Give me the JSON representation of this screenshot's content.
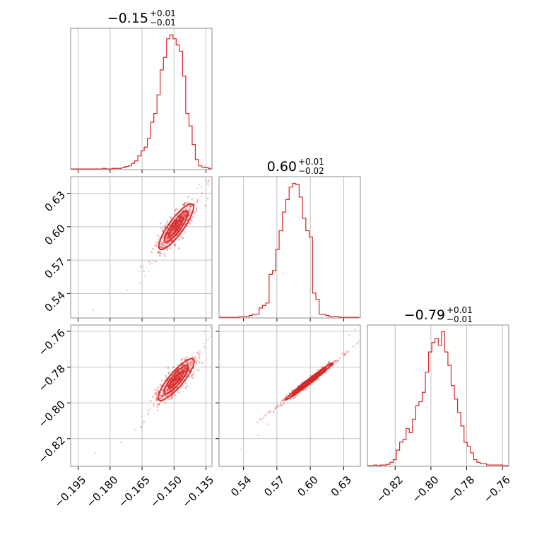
{
  "chart_data": [
    {
      "type": "histogram",
      "panel": "hist-param-1",
      "title": "−0.15",
      "title_upper": "+0.01",
      "title_lower": "−0.01",
      "xlim": [
        -0.1985,
        -0.1322
      ],
      "xticks": [
        -0.195,
        -0.18,
        -0.165,
        -0.15,
        -0.135
      ],
      "xtick_labels": [
        "−0.195",
        "−0.180",
        "−0.165",
        "−0.150",
        "−0.135"
      ],
      "show_xtick_labels": false,
      "color": "#d62728",
      "bins_start": -0.1985,
      "bin_width": 0.0015,
      "counts": [
        0.5,
        0.5,
        0.5,
        0.5,
        0.5,
        0.5,
        0.5,
        0.5,
        0.5,
        0.5,
        1,
        0.5,
        0.5,
        1,
        1,
        1,
        1.5,
        2.5,
        3,
        5,
        7,
        11,
        15,
        18,
        25,
        38,
        45,
        60,
        80,
        90,
        105,
        108,
        105,
        100,
        95,
        75,
        45,
        35,
        20,
        8,
        3,
        2,
        1.5,
        1
      ]
    },
    {
      "type": "histogram",
      "panel": "hist-param-2",
      "title": "0.60",
      "title_upper": "+0.01",
      "title_lower": "−0.02",
      "xlim": [
        0.518,
        0.645
      ],
      "xticks": [
        0.54,
        0.57,
        0.6,
        0.63
      ],
      "xtick_labels": [
        "0.54",
        "0.57",
        "0.60",
        "0.63"
      ],
      "show_xtick_labels": false,
      "color": "#d62728",
      "bins_start": 0.518,
      "bin_width": 0.003,
      "counts": [
        0.5,
        0.5,
        0.5,
        0.5,
        0.5,
        0.5,
        1,
        1,
        1,
        2,
        3,
        3,
        8,
        10,
        12,
        35,
        38,
        55,
        70,
        85,
        95,
        105,
        108,
        107,
        97,
        80,
        70,
        65,
        20,
        15,
        3,
        3,
        2,
        1,
        1,
        1,
        0.5,
        0.5,
        0.5,
        0.5,
        0.5,
        0.5
      ]
    },
    {
      "type": "histogram",
      "panel": "hist-param-3",
      "title": "−0.79",
      "title_upper": "+0.01",
      "title_lower": "−0.01",
      "xlim": [
        -0.8355,
        -0.7565
      ],
      "xticks": [
        -0.82,
        -0.8,
        -0.78,
        -0.76
      ],
      "xtick_labels": [
        "−0.82",
        "−0.80",
        "−0.78",
        "−0.76"
      ],
      "show_xtick_labels": true,
      "color": "#d62728",
      "bins_start": -0.8355,
      "bin_width": 0.0018,
      "counts": [
        0.5,
        0.5,
        1,
        0.5,
        1,
        1,
        1.5,
        3,
        5,
        12,
        18,
        20,
        28,
        25,
        35,
        45,
        48,
        55,
        70,
        85,
        92,
        95,
        90,
        100,
        85,
        75,
        60,
        50,
        40,
        30,
        18,
        15,
        10,
        5,
        3,
        2,
        2,
        1,
        1,
        1,
        1,
        1,
        0.5,
        0.5
      ]
    },
    {
      "type": "scatter",
      "panel": "param-2-vs-param-1",
      "xlim": [
        -0.1985,
        -0.1322
      ],
      "ylim": [
        0.518,
        0.645
      ],
      "xticks": [
        -0.195,
        -0.18,
        -0.165,
        -0.15,
        -0.135
      ],
      "yticks": [
        0.54,
        0.57,
        0.6,
        0.63
      ],
      "ytick_labels": [
        "0.54",
        "0.57",
        "0.60",
        "0.63"
      ],
      "show_xtick_labels": false,
      "show_ytick_labels": true,
      "color": "#d62728",
      "center": [
        -0.149,
        0.6
      ],
      "contour_a": [
        0.0055,
        0.009,
        0.013
      ],
      "contour_b": [
        0.0012,
        0.0022,
        0.0035
      ],
      "angle_deg": 54,
      "sample_spread": [
        0.006,
        0.011
      ],
      "tail_points": [
        [
          -0.166,
          0.549
        ],
        [
          -0.172,
          0.543
        ],
        [
          -0.188,
          0.525
        ],
        [
          -0.138,
          0.638
        ],
        [
          -0.134,
          0.641
        ]
      ]
    },
    {
      "type": "scatter",
      "panel": "param-3-vs-param-1",
      "xlim": [
        -0.1985,
        -0.1322
      ],
      "ylim": [
        -0.8355,
        -0.7565
      ],
      "xticks": [
        -0.195,
        -0.18,
        -0.165,
        -0.15,
        -0.135
      ],
      "xtick_labels": [
        "−0.195",
        "−0.180",
        "−0.165",
        "−0.150",
        "−0.135"
      ],
      "yticks": [
        -0.82,
        -0.8,
        -0.78,
        -0.76
      ],
      "ytick_labels": [
        "−0.82",
        "−0.80",
        "−0.78",
        "−0.76"
      ],
      "show_xtick_labels": true,
      "show_ytick_labels": true,
      "color": "#d62728",
      "center": [
        -0.149,
        -0.787
      ],
      "contour_a": [
        0.0052,
        0.0085,
        0.0125
      ],
      "contour_b": [
        0.0012,
        0.0022,
        0.0034
      ],
      "angle_deg": 50,
      "sample_spread": [
        0.006,
        0.011
      ],
      "tail_points": [
        [
          -0.168,
          -0.815
        ],
        [
          -0.175,
          -0.822
        ],
        [
          -0.187,
          -0.828
        ],
        [
          -0.136,
          -0.76
        ],
        [
          -0.133,
          -0.758
        ]
      ]
    },
    {
      "type": "scatter",
      "panel": "param-3-vs-param-2",
      "xlim": [
        0.518,
        0.645
      ],
      "ylim": [
        -0.8355,
        -0.7565
      ],
      "xticks": [
        0.54,
        0.57,
        0.6,
        0.63
      ],
      "xtick_labels": [
        "0.54",
        "0.57",
        "0.60",
        "0.63"
      ],
      "yticks": [
        -0.82,
        -0.8,
        -0.78,
        -0.76
      ],
      "show_xtick_labels": true,
      "show_ytick_labels": false,
      "color": "#d62728",
      "center": [
        0.599,
        -0.788
      ],
      "contour_a": [
        0.012,
        0.019,
        0.027
      ],
      "contour_b": [
        0.0008,
        0.0014,
        0.002
      ],
      "angle_deg": 38,
      "sample_spread": [
        0.012,
        0.022
      ],
      "tail_points": [
        [
          0.562,
          -0.812
        ],
        [
          0.553,
          -0.818
        ],
        [
          0.538,
          -0.826
        ],
        [
          0.635,
          -0.762
        ],
        [
          0.64,
          -0.759
        ]
      ]
    }
  ]
}
